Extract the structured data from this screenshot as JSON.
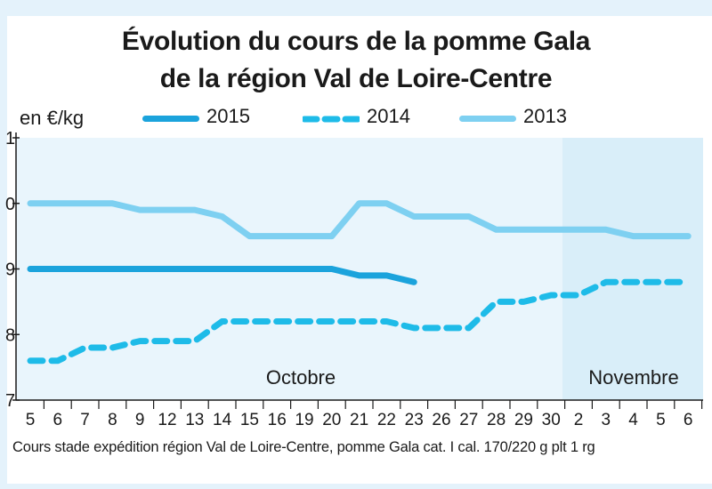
{
  "chart_data": {
    "type": "line",
    "title": "Évolution du cours de la pomme Gala",
    "subtitle": "de la région Val de Loire-Centre",
    "ylabel": "en €/kg",
    "ylim": [
      0.7,
      1.1
    ],
    "yticks": [
      "1",
      "0",
      "9",
      "8",
      "7"
    ],
    "categories": [
      "5",
      "6",
      "7",
      "8",
      "9",
      "12",
      "13",
      "14",
      "15",
      "16",
      "19",
      "20",
      "21",
      "22",
      "23",
      "26",
      "27",
      "28",
      "29",
      "30",
      "2",
      "3",
      "4",
      "5",
      "6"
    ],
    "month_labels": [
      "Octobre",
      "Novembre"
    ],
    "month_start_index": [
      0,
      20
    ],
    "series": [
      {
        "name": "2015",
        "style": "solid",
        "color": "#1ba3dc",
        "values": [
          0.9,
          0.9,
          0.9,
          0.9,
          0.9,
          0.9,
          0.9,
          0.9,
          0.9,
          0.9,
          0.9,
          0.9,
          0.89,
          0.89,
          0.88,
          null,
          null,
          null,
          null,
          null,
          null,
          null,
          null,
          null,
          null
        ]
      },
      {
        "name": "2014",
        "style": "dashed",
        "color": "#1ebbe8",
        "values": [
          0.76,
          0.76,
          0.78,
          0.78,
          0.79,
          0.79,
          0.79,
          0.82,
          0.82,
          0.82,
          0.82,
          0.82,
          0.82,
          0.82,
          0.81,
          0.81,
          0.81,
          0.85,
          0.85,
          0.86,
          0.86,
          0.88,
          0.88,
          0.88,
          0.88
        ]
      },
      {
        "name": "2013",
        "style": "solid",
        "color": "#7ed0f1",
        "values": [
          1.0,
          1.0,
          1.0,
          1.0,
          0.99,
          0.99,
          0.99,
          0.98,
          0.95,
          0.95,
          0.95,
          0.95,
          1.0,
          1.0,
          0.98,
          0.98,
          0.98,
          0.96,
          0.96,
          0.96,
          0.96,
          0.96,
          0.95,
          0.95,
          0.95
        ]
      }
    ],
    "grid": false,
    "legend_position": "top"
  },
  "footnote": "Cours stade expédition région Val de Loire-Centre, pomme Gala cat. I cal. 170/220 g plt 1 rg",
  "colors": {
    "plot_background": "#e9f5fc",
    "november_band": "#d9eef9",
    "axis": "#1a1a1a"
  }
}
